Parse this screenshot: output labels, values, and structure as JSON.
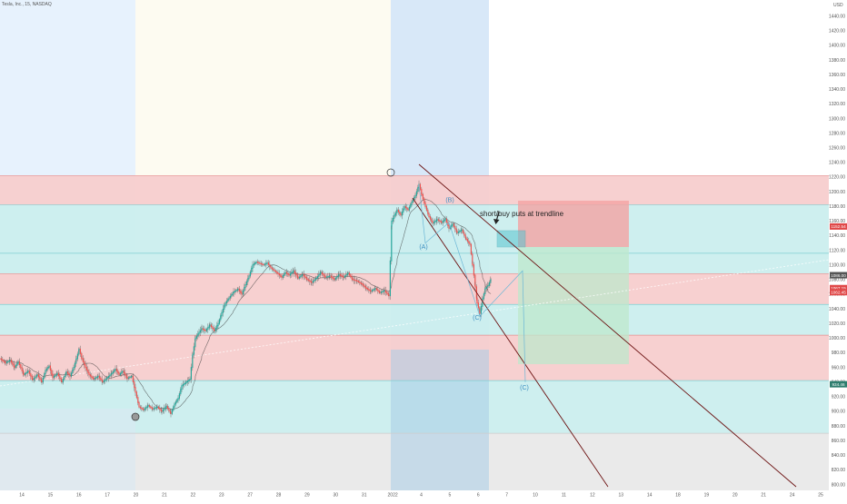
{
  "chart_data": {
    "type": "line",
    "symbol_title": "Tesla, Inc., 15, NASDAQ",
    "currency": "USD",
    "y_ticks": [
      1440,
      1420,
      1400,
      1380,
      1360,
      1340,
      1320,
      1300,
      1280,
      1260,
      1240,
      1220,
      1200,
      1180,
      1160,
      1140,
      1120,
      1100,
      1080,
      1060,
      1040,
      1020,
      1000,
      980,
      960,
      940,
      920,
      900,
      880,
      860,
      840,
      820,
      800
    ],
    "ylim": [
      792,
      1462
    ],
    "x_ticks": [
      "14",
      "15",
      "16",
      "17",
      "20",
      "21",
      "22",
      "23",
      "27",
      "28",
      "29",
      "30",
      "31",
      "2022",
      "4",
      "5",
      "6",
      "7",
      "10",
      "11",
      "12",
      "13",
      "14",
      "18",
      "19",
      "20",
      "21",
      "24",
      "25"
    ],
    "price_tags": [
      {
        "label": "1152.54",
        "value": 1152.54,
        "color": "#e04848"
      },
      {
        "label": "1086.00",
        "value": 1086,
        "color": "#555555"
      },
      {
        "label": "1067.15",
        "value": 1068.4,
        "color": "#e04848"
      },
      {
        "label": "1062.45",
        "value": 1062.8,
        "color": "#e04848"
      },
      {
        "label": "934.46",
        "value": 937,
        "color": "#2e7d6e"
      }
    ],
    "zones": [
      {
        "from": 1182,
        "to": 1222,
        "color": "#f7cdcd"
      },
      {
        "from": 1116,
        "to": 1182,
        "color": "#cbeeee"
      },
      {
        "from": 1088,
        "to": 1116,
        "color": "#cbeeee"
      },
      {
        "from": 1046,
        "to": 1088,
        "color": "#f7cdcd"
      },
      {
        "from": 1004,
        "to": 1046,
        "color": "#cbeeee"
      },
      {
        "from": 942,
        "to": 1004,
        "color": "#f7cdcd"
      },
      {
        "from": 870,
        "to": 942,
        "color": "#cbeeee"
      },
      {
        "from": 792,
        "to": 870,
        "color": "#e9e9e9"
      }
    ],
    "price_series": [
      [
        0,
        972
      ],
      [
        6,
        966
      ],
      [
        11,
        970
      ],
      [
        16,
        960
      ],
      [
        20,
        968
      ],
      [
        26,
        950
      ],
      [
        31,
        955
      ],
      [
        36,
        943
      ],
      [
        41,
        950
      ],
      [
        46,
        940
      ],
      [
        50,
        956
      ],
      [
        54,
        962
      ],
      [
        58,
        946
      ],
      [
        63,
        952
      ],
      [
        68,
        940
      ],
      [
        73,
        954
      ],
      [
        77,
        948
      ],
      [
        81,
        960
      ],
      [
        84,
        972
      ],
      [
        87,
        985
      ],
      [
        90,
        972
      ],
      [
        94,
        960
      ],
      [
        98,
        950
      ],
      [
        103,
        944
      ],
      [
        108,
        948
      ],
      [
        113,
        940
      ],
      [
        118,
        946
      ],
      [
        123,
        952
      ],
      [
        127,
        958
      ],
      [
        131,
        950
      ],
      [
        135,
        955
      ],
      [
        140,
        945
      ],
      [
        145,
        948
      ],
      [
        149,
        926
      ],
      [
        153,
        906
      ],
      [
        158,
        902
      ],
      [
        163,
        908
      ],
      [
        168,
        903
      ],
      [
        173,
        906
      ],
      [
        178,
        900
      ],
      [
        183,
        907
      ],
      [
        188,
        897
      ],
      [
        192,
        910
      ],
      [
        196,
        918
      ],
      [
        200,
        935
      ],
      [
        205,
        940
      ],
      [
        209,
        944
      ],
      [
        212,
        978
      ],
      [
        215,
        1000
      ],
      [
        219,
        1008
      ],
      [
        222,
        1013
      ],
      [
        226,
        1010
      ],
      [
        231,
        1018
      ],
      [
        236,
        1010
      ],
      [
        240,
        1020
      ],
      [
        244,
        1035
      ],
      [
        248,
        1048
      ],
      [
        252,
        1055
      ],
      [
        257,
        1063
      ],
      [
        262,
        1067
      ],
      [
        266,
        1060
      ],
      [
        270,
        1073
      ],
      [
        274,
        1085
      ],
      [
        278,
        1100
      ],
      [
        282,
        1104
      ],
      [
        286,
        1102
      ],
      [
        290,
        1100
      ],
      [
        294,
        1103
      ],
      [
        298,
        1096
      ],
      [
        302,
        1092
      ],
      [
        306,
        1088
      ],
      [
        310,
        1083
      ],
      [
        314,
        1090
      ],
      [
        318,
        1086
      ],
      [
        323,
        1092
      ],
      [
        328,
        1082
      ],
      [
        333,
        1087
      ],
      [
        338,
        1080
      ],
      [
        343,
        1076
      ],
      [
        348,
        1082
      ],
      [
        353,
        1090
      ],
      [
        358,
        1083
      ],
      [
        363,
        1085
      ],
      [
        368,
        1080
      ],
      [
        373,
        1087
      ],
      [
        378,
        1083
      ],
      [
        383,
        1089
      ],
      [
        388,
        1080
      ],
      [
        393,
        1078
      ],
      [
        398,
        1074
      ],
      [
        403,
        1068
      ],
      [
        408,
        1064
      ],
      [
        413,
        1068
      ],
      [
        418,
        1062
      ],
      [
        423,
        1065
      ],
      [
        428,
        1058
      ],
      [
        431,
        1160
      ],
      [
        434,
        1168
      ],
      [
        437,
        1175
      ],
      [
        441,
        1168
      ],
      [
        445,
        1180
      ],
      [
        449,
        1175
      ],
      [
        453,
        1186
      ],
      [
        457,
        1195
      ],
      [
        461,
        1210
      ],
      [
        464,
        1196
      ],
      [
        468,
        1180
      ],
      [
        472,
        1166
      ],
      [
        476,
        1157
      ],
      [
        481,
        1162
      ],
      [
        486,
        1158
      ],
      [
        490,
        1163
      ],
      [
        494,
        1150
      ],
      [
        498,
        1156
      ],
      [
        503,
        1144
      ],
      [
        508,
        1148
      ],
      [
        513,
        1135
      ],
      [
        517,
        1128
      ],
      [
        520,
        1100
      ],
      [
        523,
        1070
      ],
      [
        525,
        1048
      ],
      [
        528,
        1034
      ],
      [
        531,
        1054
      ],
      [
        534,
        1068
      ],
      [
        537,
        1072
      ],
      [
        540,
        1080
      ]
    ],
    "zigzag": [
      [
        461,
        1210
      ],
      [
        468,
        1130
      ],
      [
        494,
        1158
      ],
      [
        528,
        1030
      ],
      [
        575,
        1092
      ],
      [
        578,
        940
      ]
    ],
    "wave_labels": [
      {
        "text": "(A)",
        "x": 466,
        "value": 1122
      },
      {
        "text": "(B)",
        "x": 495,
        "value": 1186
      },
      {
        "text": "(C)",
        "x": 525,
        "value": 1025
      },
      {
        "text": "(C)",
        "x": 577,
        "value": 930
      }
    ],
    "annotation": {
      "text": "short/buy puts at trendline",
      "x": 528,
      "value": 1167
    }
  }
}
